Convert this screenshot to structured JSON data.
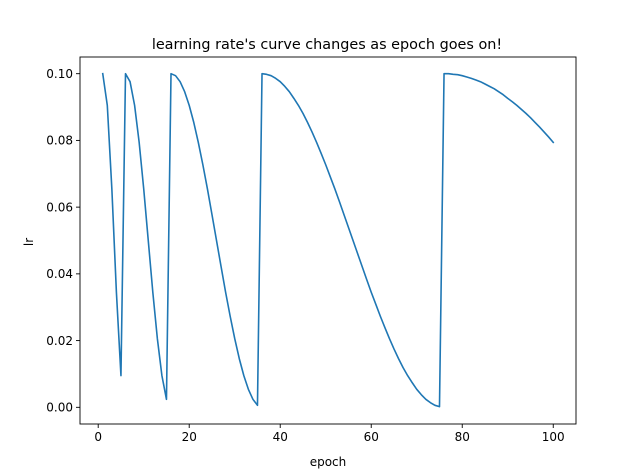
{
  "chart_data": {
    "type": "line",
    "title": "learning rate's curve changes as epoch goes on!",
    "xlabel": "epoch",
    "ylabel": "lr",
    "xlim": [
      -4.0,
      105.0
    ],
    "ylim": [
      -0.005,
      0.105
    ],
    "xticks": [
      0,
      20,
      40,
      60,
      80,
      100
    ],
    "xtick_labels": [
      "0",
      "20",
      "40",
      "60",
      "80",
      "100"
    ],
    "yticks": [
      0.0,
      0.02,
      0.04,
      0.06,
      0.08,
      0.1
    ],
    "ytick_labels": [
      "0.00",
      "0.02",
      "0.04",
      "0.06",
      "0.08",
      "0.10"
    ],
    "grid": false,
    "legend": "none",
    "series": [
      {
        "color": "#1f77b4",
        "x": [
          1,
          2,
          3,
          4,
          5,
          6,
          7,
          8,
          9,
          10,
          11,
          12,
          13,
          14,
          15,
          16,
          17,
          18,
          19,
          20,
          21,
          22,
          23,
          24,
          25,
          26,
          27,
          28,
          29,
          30,
          31,
          32,
          33,
          34,
          35,
          36,
          37,
          38,
          39,
          40,
          41,
          42,
          43,
          44,
          45,
          46,
          47,
          48,
          49,
          50,
          51,
          52,
          53,
          54,
          55,
          56,
          57,
          58,
          59,
          60,
          61,
          62,
          63,
          64,
          65,
          66,
          67,
          68,
          69,
          70,
          71,
          72,
          73,
          74,
          75,
          76,
          77,
          78,
          79,
          80,
          81,
          82,
          83,
          84,
          85,
          86,
          87,
          88,
          89,
          90,
          91,
          92,
          93,
          94,
          95,
          96,
          97,
          98,
          99,
          100
        ],
        "y": [
          0.1,
          0.0905,
          0.0655,
          0.0345,
          0.0095,
          0.1,
          0.0976,
          0.0905,
          0.0794,
          0.0655,
          0.05,
          0.0345,
          0.0206,
          0.0095,
          0.0024,
          0.1,
          0.0994,
          0.0976,
          0.0946,
          0.0905,
          0.0854,
          0.0794,
          0.0727,
          0.0655,
          0.0578,
          0.05,
          0.0422,
          0.0345,
          0.0273,
          0.0206,
          0.0146,
          0.0095,
          0.0054,
          0.0024,
          0.0006,
          0.1,
          0.0998,
          0.0994,
          0.0986,
          0.0976,
          0.0962,
          0.0946,
          0.0926,
          0.0905,
          0.0881,
          0.0854,
          0.0825,
          0.0794,
          0.0761,
          0.0727,
          0.0691,
          0.0655,
          0.0617,
          0.0578,
          0.0539,
          0.05,
          0.0461,
          0.0422,
          0.0383,
          0.0345,
          0.0309,
          0.0273,
          0.0239,
          0.0206,
          0.0175,
          0.0146,
          0.0119,
          0.0095,
          0.0074,
          0.0054,
          0.0038,
          0.0024,
          0.0014,
          0.0006,
          0.0002,
          0.1,
          0.1,
          0.0998,
          0.0997,
          0.0994,
          0.099,
          0.0986,
          0.0981,
          0.0976,
          0.0969,
          0.0962,
          0.0955,
          0.0946,
          0.0937,
          0.0926,
          0.0916,
          0.0905,
          0.0893,
          0.0881,
          0.0868,
          0.0854,
          0.084,
          0.0825,
          0.081,
          0.0794
        ]
      }
    ]
  }
}
